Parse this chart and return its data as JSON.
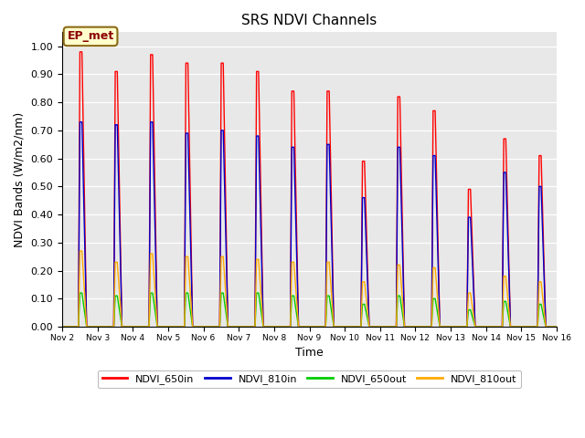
{
  "title": "SRS NDVI Channels",
  "ylabel": "NDVI Bands (W/m2/nm)",
  "xlabel": "Time",
  "annotation": "EP_met",
  "background_color": "#e8e8e8",
  "series": [
    {
      "label": "NDVI_650in",
      "color": "#ff0000"
    },
    {
      "label": "NDVI_810in",
      "color": "#0000cc"
    },
    {
      "label": "NDVI_650out",
      "color": "#00cc00"
    },
    {
      "label": "NDVI_810out",
      "color": "#ffaa00"
    }
  ],
  "day_peaks": {
    "NDVI_650in": [
      0.98,
      0.91,
      0.97,
      0.94,
      0.94,
      0.91,
      0.84,
      0.84,
      0.59,
      0.82,
      0.77,
      0.49,
      0.67,
      0.61
    ],
    "NDVI_810in": [
      0.73,
      0.72,
      0.73,
      0.69,
      0.7,
      0.68,
      0.64,
      0.65,
      0.46,
      0.64,
      0.61,
      0.39,
      0.55,
      0.5
    ],
    "NDVI_650out": [
      0.12,
      0.11,
      0.12,
      0.12,
      0.12,
      0.12,
      0.11,
      0.11,
      0.08,
      0.11,
      0.1,
      0.06,
      0.09,
      0.08
    ],
    "NDVI_810out": [
      0.27,
      0.23,
      0.26,
      0.25,
      0.25,
      0.24,
      0.23,
      0.23,
      0.16,
      0.22,
      0.21,
      0.12,
      0.18,
      0.16
    ]
  },
  "n_days": 14,
  "start_day": 2,
  "yticks": [
    0.0,
    0.1,
    0.2,
    0.3,
    0.4,
    0.5,
    0.6,
    0.7,
    0.8,
    0.9,
    1.0
  ],
  "tick_labels": [
    "Nov 2",
    "Nov 3",
    "Nov 4",
    "Nov 4",
    "Nov 5",
    "Nov 6",
    "Nov 7",
    "Nov 8",
    "Nov 9",
    "Nov 9",
    "Nov 10",
    "Nov 11",
    "Nov 12",
    "Nov 13",
    "Nov 14",
    "Nov 15",
    "Nov 16"
  ],
  "spike_rise": 0.04,
  "spike_fall": 0.13,
  "spike_flat": 0.06
}
